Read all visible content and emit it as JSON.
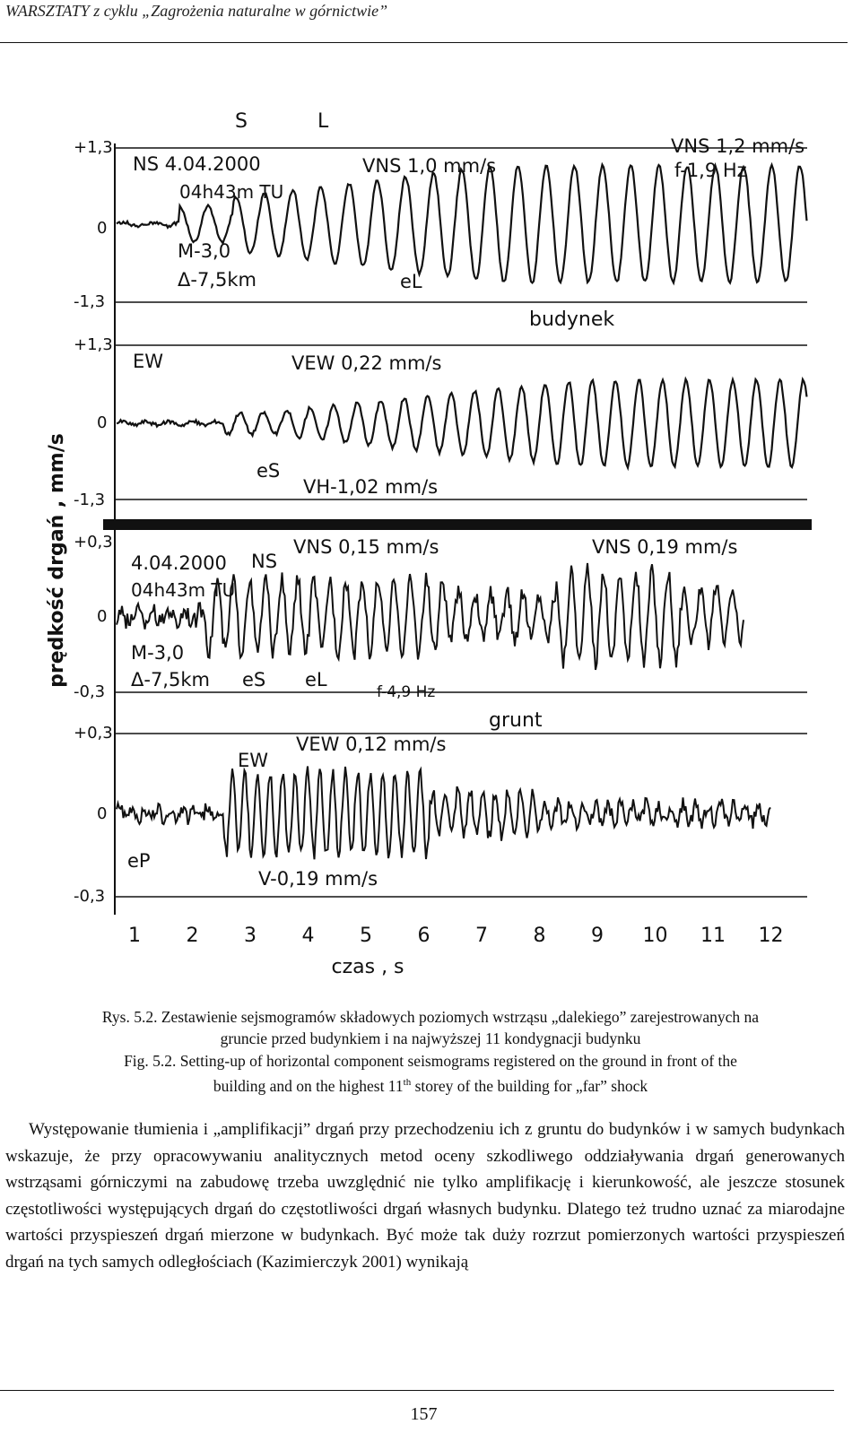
{
  "header": {
    "title": "WARSZTATY z cyklu „Zagrożenia naturalne w górnictwie”"
  },
  "figure": {
    "y_axis_label": "prędkość drgań , mm/s",
    "x_axis_label": "czas , s",
    "x_ticks": [
      "1",
      "2",
      "3",
      "4",
      "5",
      "6",
      "7",
      "8",
      "9",
      "10",
      "11",
      "12"
    ],
    "phase_marks": [
      "S",
      "L"
    ],
    "building_label": "budynek",
    "ground_label": "grunt",
    "panels": [
      {
        "top_tick": "+1,3",
        "zero_tick": "0",
        "bottom_tick": "-1,3",
        "labels": [
          "NS 4.04.2000",
          "04h43m TU",
          "M-3,0",
          "Δ-7,5km",
          "VNS 1,0 mm/s",
          "eL",
          "VNS 1,2 mm/s",
          "f-1,9 Hz"
        ]
      },
      {
        "top_tick": "+1,3",
        "zero_tick": "0",
        "bottom_tick": "-1,3",
        "labels": [
          "EW",
          "VEW 0,22 mm/s",
          "eS",
          "VH-1,02 mm/s"
        ]
      },
      {
        "top_tick": "+0,3",
        "zero_tick": "0",
        "bottom_tick": "-0,3",
        "labels": [
          "4.04.2000",
          "NS",
          "04h43m TU",
          "VNS 0,15 mm/s",
          "VNS 0,19 mm/s",
          "M-3,0",
          "Δ-7,5km",
          "eS",
          "eL",
          "f-4,9 Hz"
        ]
      },
      {
        "top_tick": "+0,3",
        "zero_tick": "0",
        "bottom_tick": "-0,3",
        "labels": [
          "EW",
          "VEW 0,12 mm/s",
          "eP",
          "V-0,19 mm/s"
        ]
      }
    ]
  },
  "caption_pl": {
    "line1": "Rys. 5.2. Zestawienie sejsmogramów składowych poziomych wstrząsu „dalekiego” zarejestrowanych na",
    "line2": "gruncie przed budynkiem i na najwyższej 11 kondygnacji budynku"
  },
  "caption_en": {
    "line1": "Fig. 5.2. Setting-up of horizontal component seismograms registered on the ground in front of the",
    "line2_pre": "building and on the highest 11",
    "line2_sup": "th",
    "line2_post": " storey of the building for „far” shock"
  },
  "body": {
    "paragraph": "Występowanie tłumienia i „amplifikacji” drgań przy przechodzeniu ich z gruntu do budynków i w samych budynkach wskazuje, że przy opracowywaniu analitycznych metod oceny szkodliwego oddziaływania drgań generowanych wstrząsami górniczymi na zabudowę trzeba uwzględnić nie tylko amplifikację i kierunkowość, ale jeszcze stosunek częstotliwości występujących drgań do częstotliwości drgań własnych budynku. Dlatego też trudno uznać za miarodajne wartości przyspieszeń drgań mierzone w budynkach. Być może tak duży rozrzut pomierzonych wartości przyspieszeń drgań na tych samych odległościach (Kazimierczyk 2001) wynikają"
  },
  "footer": {
    "page_number": "157"
  }
}
